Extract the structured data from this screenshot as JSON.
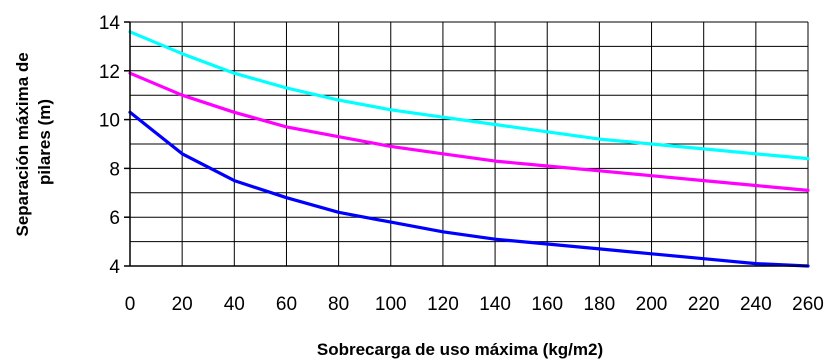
{
  "chart_data": {
    "type": "line",
    "title": "",
    "xlabel": "Sobrecarga de uso máxima (kg/m2)",
    "ylabel_lines": [
      "Separación máxima de",
      "pilares (m)"
    ],
    "xlim": [
      0,
      260
    ],
    "ylim": [
      4,
      14
    ],
    "x_ticks": [
      0,
      20,
      40,
      60,
      80,
      100,
      120,
      140,
      160,
      180,
      200,
      220,
      240,
      260
    ],
    "y_ticks": [
      4,
      6,
      8,
      10,
      12,
      14
    ],
    "x_gridlines": [
      0,
      20,
      40,
      60,
      80,
      100,
      120,
      140,
      160,
      180,
      200,
      220,
      240,
      260
    ],
    "y_gridlines": [
      4,
      5,
      6,
      7,
      8,
      9,
      10,
      11,
      12,
      13,
      14
    ],
    "grid": true,
    "legend": "none",
    "x": [
      0,
      20,
      40,
      60,
      80,
      100,
      120,
      140,
      160,
      180,
      200,
      220,
      240,
      260
    ],
    "series": [
      {
        "color": "#00ffff",
        "values": [
          13.6,
          12.7,
          11.9,
          11.3,
          10.8,
          10.4,
          10.1,
          9.8,
          9.5,
          9.2,
          9.0,
          8.8,
          8.6,
          8.4
        ]
      },
      {
        "color": "#ff00ff",
        "values": [
          11.9,
          11.0,
          10.3,
          9.7,
          9.3,
          8.9,
          8.6,
          8.3,
          8.1,
          7.9,
          7.7,
          7.5,
          7.3,
          7.1
        ]
      },
      {
        "color": "#0000ff",
        "values": [
          10.3,
          8.6,
          7.5,
          6.8,
          6.2,
          5.8,
          5.4,
          5.1,
          4.9,
          4.7,
          4.5,
          4.3,
          4.1,
          4.0
        ]
      }
    ]
  }
}
